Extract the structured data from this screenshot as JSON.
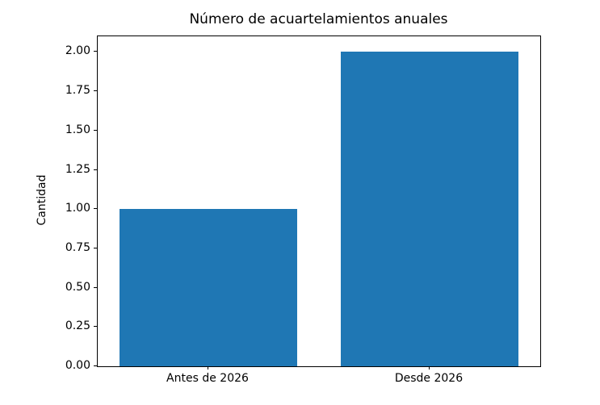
{
  "figure": {
    "background": "#ffffff",
    "text_color": "#000000",
    "spine_color": "#000000"
  },
  "chart_data": {
    "type": "bar",
    "title": "Número de acuartelamientos anuales",
    "categories": [
      "Antes de 2026",
      "Desde 2026"
    ],
    "values": [
      1,
      2
    ],
    "xlabel": "",
    "ylabel": "Cantidad",
    "ylim": [
      0,
      2.1
    ],
    "xlim": [
      -0.5,
      1.5
    ],
    "yticks": [
      0.0,
      0.25,
      0.5,
      0.75,
      1.0,
      1.25,
      1.5,
      1.75,
      2.0
    ],
    "ytick_labels": [
      "0.00",
      "0.25",
      "0.50",
      "0.75",
      "1.00",
      "1.25",
      "1.50",
      "1.75",
      "2.00"
    ],
    "bar_color": "#1f77b4",
    "bar_width": 0.8,
    "grid": false,
    "legend_position": "none"
  }
}
